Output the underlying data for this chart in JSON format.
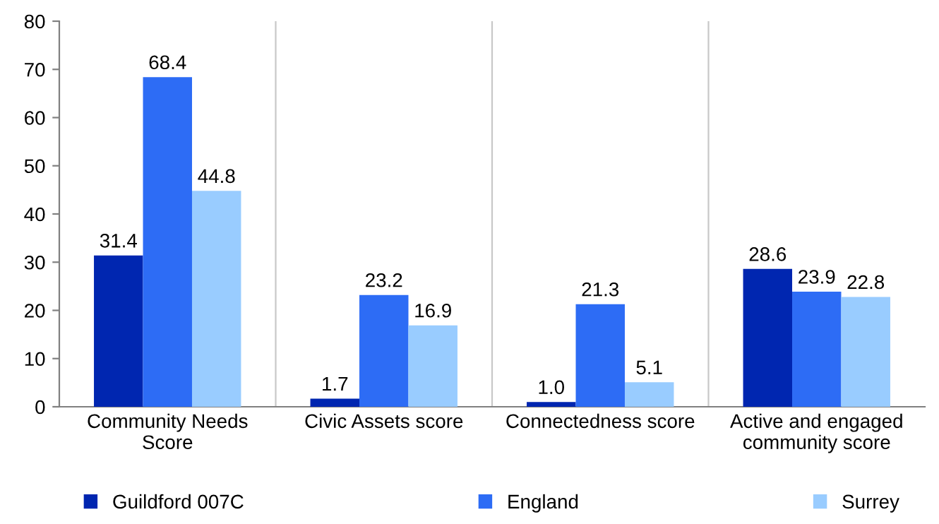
{
  "chart_data": {
    "type": "bar",
    "categories": [
      "Community Needs\nScore",
      "Civic Assets score",
      "Connectedness score",
      "Active and engaged\ncommunity score"
    ],
    "series": [
      {
        "name": "Guildford 007C",
        "color": "#0026b0",
        "values": [
          31.4,
          1.7,
          1.0,
          28.6
        ],
        "value_labels": [
          "31.4",
          "1.7",
          "1.0",
          "28.6"
        ]
      },
      {
        "name": "England",
        "color": "#2d6cf5",
        "values": [
          68.4,
          23.2,
          21.3,
          23.9
        ],
        "value_labels": [
          "68.4",
          "23.2",
          "21.3",
          "23.9"
        ]
      },
      {
        "name": "Surrey",
        "color": "#99ccff",
        "values": [
          44.8,
          16.9,
          5.1,
          22.8
        ],
        "value_labels": [
          "44.8",
          "16.9",
          "5.1",
          "22.8"
        ]
      }
    ],
    "ylim": [
      0,
      80
    ],
    "yticks": [
      0,
      10,
      20,
      30,
      40,
      50,
      60,
      70,
      80
    ],
    "grid": "x",
    "legend": "bottom"
  }
}
